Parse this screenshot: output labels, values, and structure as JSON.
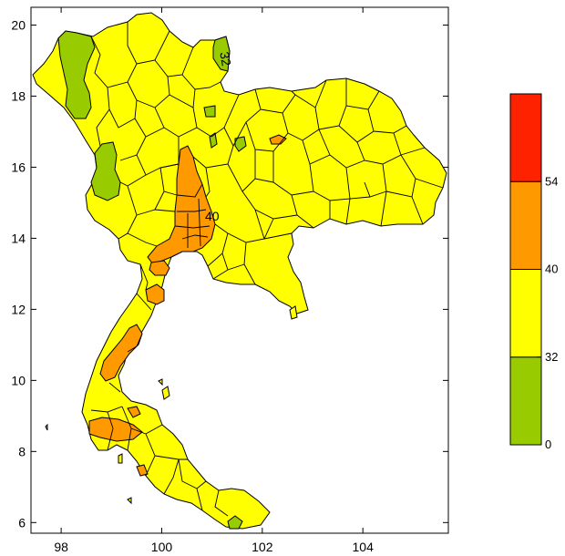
{
  "chart_data": {
    "type": "heatmap",
    "title": "",
    "xlabel": "",
    "ylabel": "",
    "x_ticks": [
      98,
      100,
      102,
      104
    ],
    "y_ticks": [
      6,
      8,
      10,
      12,
      14,
      16,
      18,
      20
    ],
    "xlim": [
      97.4,
      105.7
    ],
    "ylim": [
      5.7,
      20.5
    ],
    "contour_labels": [
      "32",
      "40"
    ],
    "colorbar": {
      "bins": [
        {
          "min": 0,
          "max": 32,
          "color": "#99cc00"
        },
        {
          "min": 32,
          "max": 40,
          "color": "#ffff00"
        },
        {
          "min": 40,
          "max": 54,
          "color": "#ff9900"
        },
        {
          "min": 54,
          "max": null,
          "color": "#ff2200"
        }
      ],
      "tick_labels": [
        "0",
        "32",
        "40",
        "54"
      ]
    },
    "colors": {
      "land": "#ffff00",
      "low": "#99cc00",
      "mid_high": "#ff9900",
      "top": "#ff2200"
    }
  }
}
